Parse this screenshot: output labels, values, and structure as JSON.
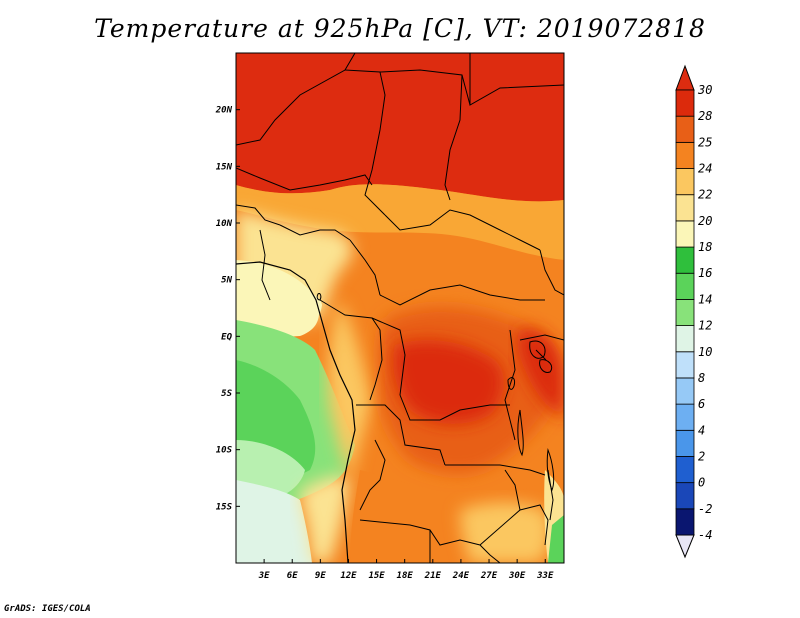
{
  "title": "Temperature at 925hPa [C], VT: 2019072818",
  "credit": "GrADS: IGES/COLA",
  "map": {
    "lon_range": [
      0,
      35
    ],
    "lat_range": [
      -20,
      25
    ],
    "lon_ticks": [
      "3E",
      "6E",
      "9E",
      "12E",
      "15E",
      "18E",
      "21E",
      "24E",
      "27E",
      "30E",
      "33E"
    ],
    "lat_ticks": [
      "20N",
      "15N",
      "10N",
      "5N",
      "EQ",
      "5S",
      "10S",
      "15S"
    ]
  },
  "colorbar": {
    "levels": [
      "-4",
      "-2",
      "0",
      "2",
      "4",
      "6",
      "8",
      "10",
      "12",
      "14",
      "16",
      "18",
      "20",
      "22",
      "24",
      "25",
      "28",
      "30"
    ],
    "colors": [
      "#0a1670",
      "#1a47b8",
      "#1f5fd0",
      "#2f7ee0",
      "#4a96ea",
      "#6daff2",
      "#96c9f6",
      "#bfe0fa",
      "#dff4e6",
      "#b8f0b0",
      "#88e27a",
      "#5bd35a",
      "#2fbf3c",
      "#fbf6b8",
      "#fbe392",
      "#fbc760",
      "#f9a735",
      "#f48320",
      "#e85f17",
      "#dc2a0c",
      "#dd2c10"
    ]
  }
}
